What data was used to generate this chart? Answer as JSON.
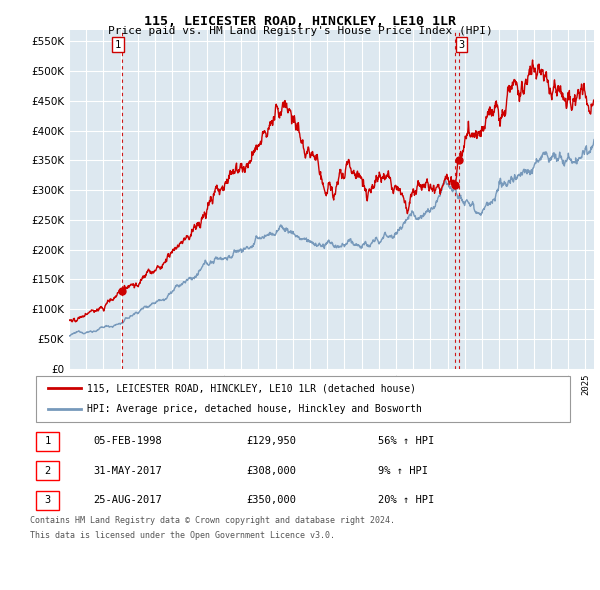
{
  "title": "115, LEICESTER ROAD, HINCKLEY, LE10 1LR",
  "subtitle": "Price paid vs. HM Land Registry's House Price Index (HPI)",
  "ytick_values": [
    0,
    50000,
    100000,
    150000,
    200000,
    250000,
    300000,
    350000,
    400000,
    450000,
    500000,
    550000
  ],
  "ylim": [
    0,
    570000
  ],
  "xlim_start": 1995.0,
  "xlim_end": 2025.5,
  "background_color": "#ffffff",
  "plot_bg_color": "#dde8f0",
  "grid_color": "#ffffff",
  "red_line_color": "#cc0000",
  "blue_line_color": "#7799bb",
  "transactions": [
    {
      "num": 1,
      "date_x": 1998.09,
      "price": 129950,
      "date_str": "05-FEB-1998"
    },
    {
      "num": 2,
      "date_x": 2017.42,
      "price": 308000,
      "date_str": "31-MAY-2017"
    },
    {
      "num": 3,
      "date_x": 2017.65,
      "price": 350000,
      "date_str": "25-AUG-2017"
    }
  ],
  "legend_red_label": "115, LEICESTER ROAD, HINCKLEY, LE10 1LR (detached house)",
  "legend_blue_label": "HPI: Average price, detached house, Hinckley and Bosworth",
  "footer_line1": "Contains HM Land Registry data © Crown copyright and database right 2024.",
  "footer_line2": "This data is licensed under the Open Government Licence v3.0.",
  "table_rows": [
    [
      "1",
      "05-FEB-1998",
      "£129,950",
      "56% ↑ HPI"
    ],
    [
      "2",
      "31-MAY-2017",
      "£308,000",
      "9% ↑ HPI"
    ],
    [
      "3",
      "25-AUG-2017",
      "£350,000",
      "20% ↑ HPI"
    ]
  ]
}
